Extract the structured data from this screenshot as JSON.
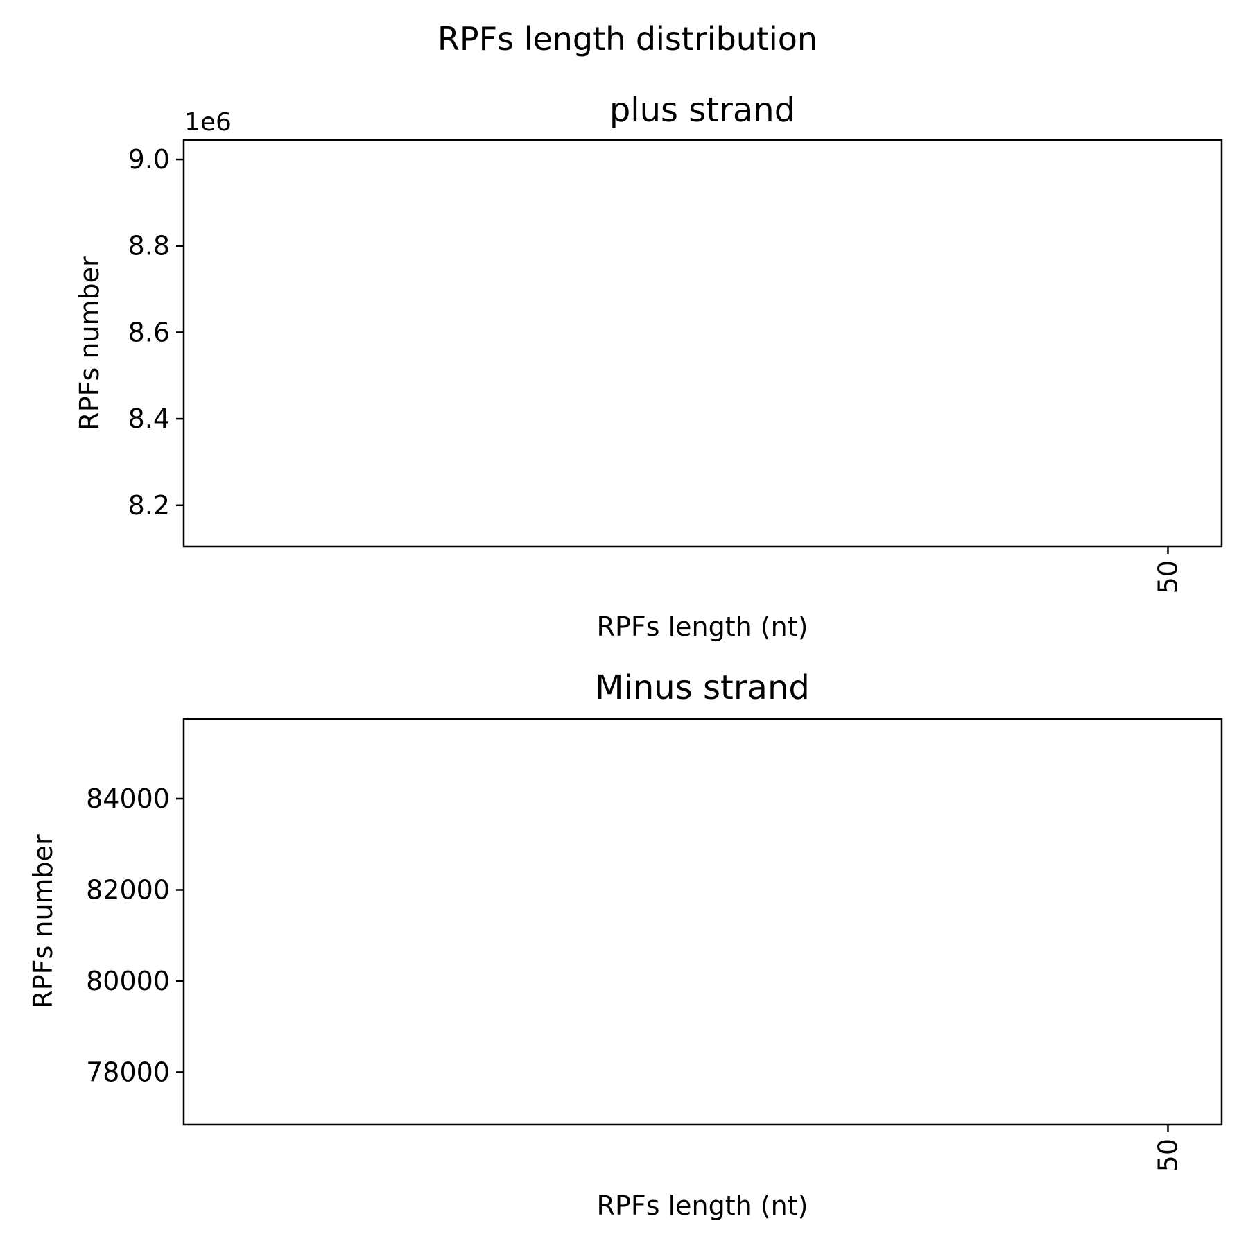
{
  "figure": {
    "suptitle": "RPFs length distribution"
  },
  "chart_data": [
    {
      "type": "bar",
      "title": "plus strand",
      "xlabel": "RPFs length (nt)",
      "ylabel": "RPFs number",
      "y_offset_text": "1e6",
      "x_ticks": [
        {
          "value": 50,
          "label": "50"
        }
      ],
      "y_ticks": [
        {
          "value": 8200000,
          "label": "8.2"
        },
        {
          "value": 8400000,
          "label": "8.4"
        },
        {
          "value": 8600000,
          "label": "8.6"
        },
        {
          "value": 8800000,
          "label": "8.8"
        },
        {
          "value": 9000000,
          "label": "9.0"
        }
      ],
      "xlim": [
        -3.1,
        52.9
      ],
      "ylim": [
        8105000,
        9045000
      ],
      "x": [],
      "values": [],
      "grid": false,
      "legend": "none"
    },
    {
      "type": "bar",
      "title": "Minus strand",
      "xlabel": "RPFs length (nt)",
      "ylabel": "RPFs number",
      "y_offset_text": "",
      "x_ticks": [
        {
          "value": 50,
          "label": "50"
        }
      ],
      "y_ticks": [
        {
          "value": 78000,
          "label": "78000"
        },
        {
          "value": 80000,
          "label": "80000"
        },
        {
          "value": 82000,
          "label": "82000"
        },
        {
          "value": 84000,
          "label": "84000"
        }
      ],
      "xlim": [
        -3.1,
        52.9
      ],
      "ylim": [
        76850,
        85750
      ],
      "x": [],
      "values": [],
      "grid": false,
      "legend": "none"
    }
  ]
}
